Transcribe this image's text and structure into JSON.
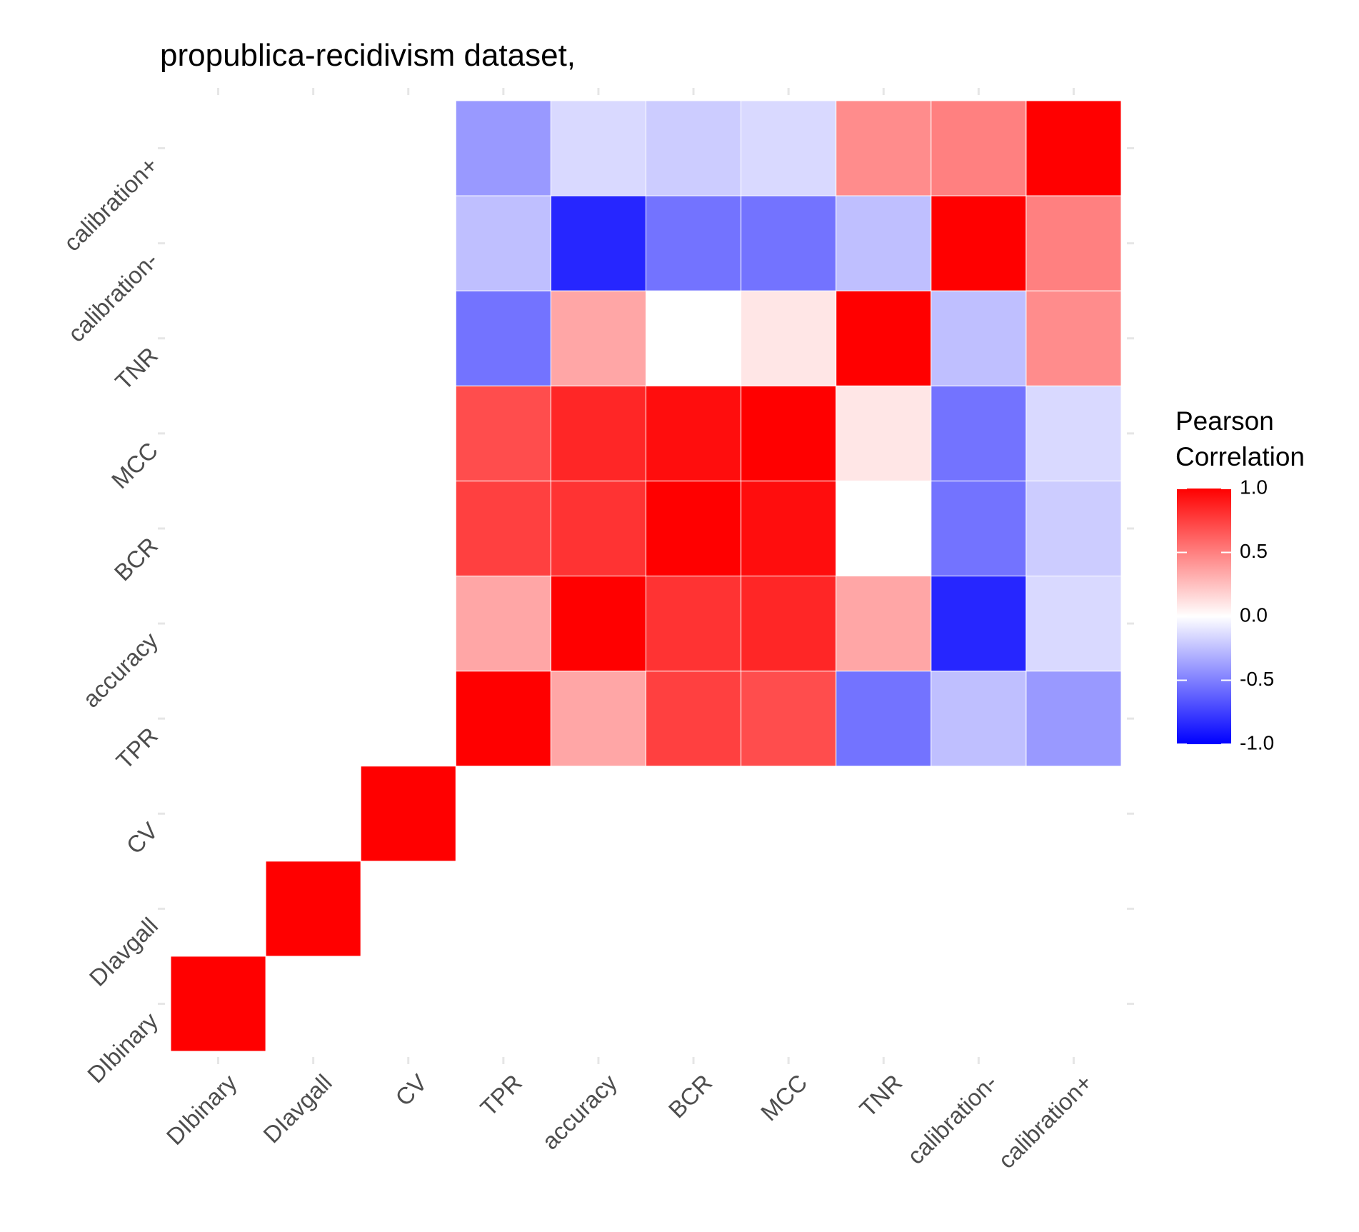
{
  "chart_data": {
    "type": "heatmap",
    "title": "propublica-recidivism dataset,",
    "xlabel": "",
    "ylabel": "",
    "categories": [
      "DIbinary",
      "DIavgall",
      "CV",
      "TPR",
      "accuracy",
      "BCR",
      "MCC",
      "TNR",
      "calibration-",
      "calibration+"
    ],
    "matrix": [
      [
        1,
        null,
        null,
        null,
        null,
        null,
        null,
        null,
        null,
        null
      ],
      [
        null,
        1,
        null,
        null,
        null,
        null,
        null,
        null,
        null,
        null
      ],
      [
        null,
        null,
        1,
        null,
        null,
        null,
        null,
        null,
        null,
        null
      ],
      [
        null,
        null,
        null,
        1,
        0.35,
        0.75,
        0.7,
        -0.55,
        -0.25,
        -0.4
      ],
      [
        null,
        null,
        null,
        0.35,
        1,
        0.8,
        0.85,
        0.35,
        -0.85,
        -0.15
      ],
      [
        null,
        null,
        null,
        0.75,
        0.8,
        1,
        0.95,
        0.0,
        -0.55,
        -0.2
      ],
      [
        null,
        null,
        null,
        0.7,
        0.85,
        0.95,
        1,
        0.1,
        -0.55,
        -0.15
      ],
      [
        null,
        null,
        null,
        -0.55,
        0.35,
        0.0,
        0.1,
        1,
        -0.25,
        0.45
      ],
      [
        null,
        null,
        null,
        -0.25,
        -0.85,
        -0.55,
        -0.55,
        -0.25,
        1,
        0.5
      ],
      [
        null,
        null,
        null,
        -0.4,
        -0.15,
        -0.2,
        -0.15,
        0.45,
        0.5,
        1
      ]
    ],
    "legend": {
      "title": [
        "Pearson",
        "Correlation"
      ],
      "ticks": [
        1.0,
        0.5,
        0.0,
        -0.5,
        -1.0
      ],
      "tick_labels": [
        "1.0",
        "0.5",
        "0.0",
        "-0.5",
        "-1.0"
      ],
      "limits": [
        -1,
        1
      ],
      "colors": {
        "low": "#0000ff",
        "mid": "#ffffff",
        "high": "#ff0000"
      },
      "placement": "right"
    },
    "grid": false
  }
}
